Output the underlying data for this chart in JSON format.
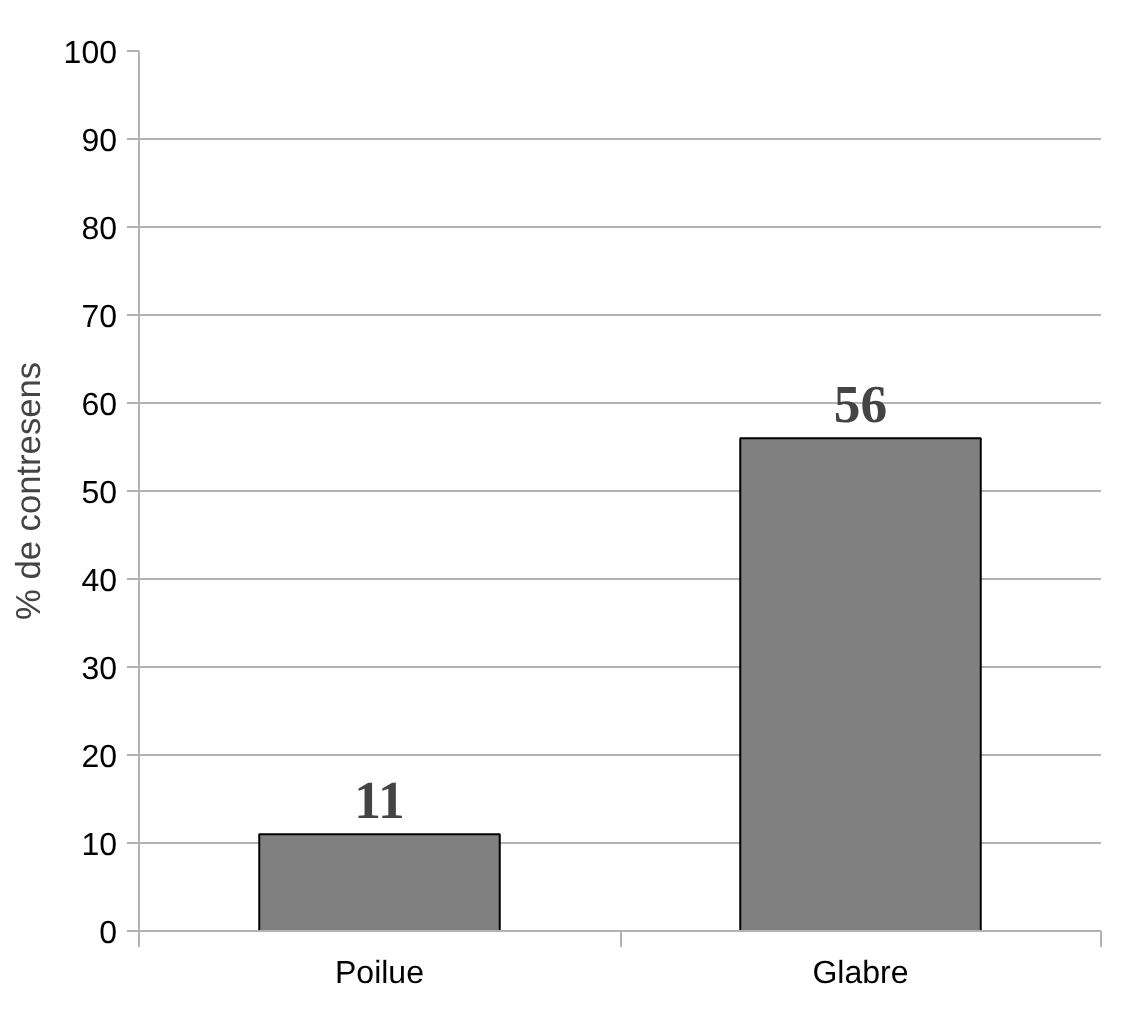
{
  "chart_data": {
    "type": "bar",
    "ylabel": "% de contresens",
    "categories": [
      "Poilue",
      "Glabre"
    ],
    "values": [
      11,
      56
    ],
    "color": "#808080",
    "ylim": [
      0,
      100
    ],
    "yticks": [
      0,
      10,
      20,
      30,
      40,
      50,
      60,
      70,
      80,
      90,
      100
    ],
    "grid": "y",
    "data_labels": true
  }
}
